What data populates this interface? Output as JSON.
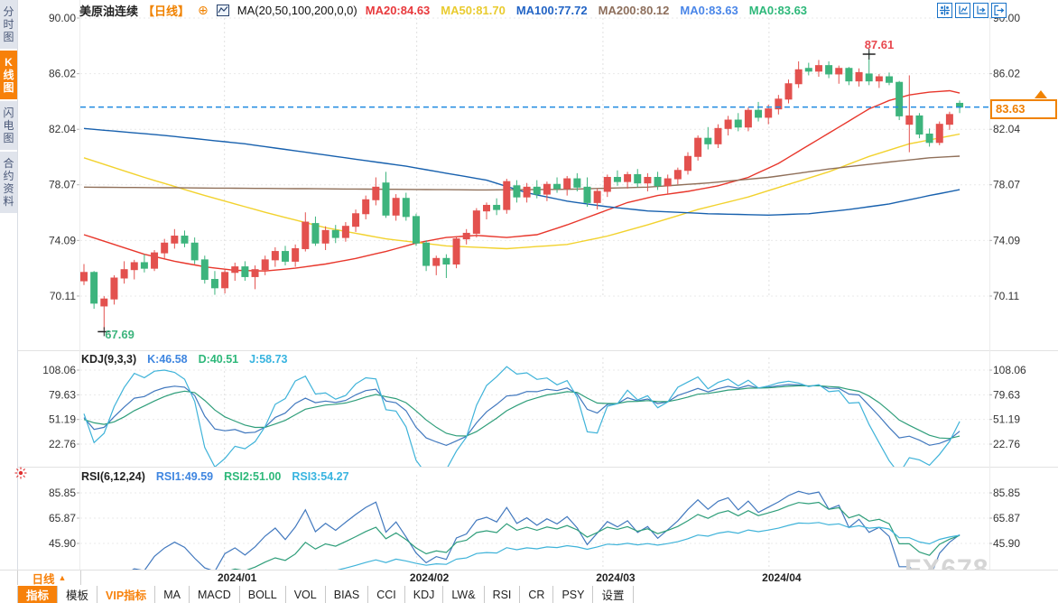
{
  "header": {
    "title": "美原油连续",
    "period_tag": "【日线】",
    "ma_formula": "MA(20,50,100,200,0,0)",
    "ma_values": [
      {
        "label": "MA20:84.63",
        "color": "#e8393c"
      },
      {
        "label": "MA50:81.70",
        "color": "#e9cb2e"
      },
      {
        "label": "MA100:77.72",
        "color": "#2264c5"
      },
      {
        "label": "MA200:80.12",
        "color": "#8d6e5b"
      },
      {
        "label": "MA0:83.63",
        "color": "#4a86e8"
      },
      {
        "label": "MA0:83.63",
        "color": "#2eb87a"
      }
    ]
  },
  "sidebar": {
    "tabs": [
      {
        "label": "分时图",
        "active": false
      },
      {
        "label": "K线图",
        "active": true
      },
      {
        "label": "闪电图",
        "active": false
      },
      {
        "label": "合约资料",
        "active": false
      }
    ]
  },
  "kdj_header": {
    "title": "KDJ(9,3,3)",
    "values": [
      {
        "label": "K:46.58",
        "color": "#3f86e0"
      },
      {
        "label": "D:40.51",
        "color": "#2eb87a"
      },
      {
        "label": "J:58.73",
        "color": "#38b4e0"
      }
    ]
  },
  "rsi_header": {
    "title": "RSI(6,12,24)",
    "values": [
      {
        "label": "RSI1:49.59",
        "color": "#3f86e0"
      },
      {
        "label": "RSI2:51.00",
        "color": "#2eb87a"
      },
      {
        "label": "RSI3:54.27",
        "color": "#38b4e0"
      }
    ]
  },
  "badge": {
    "price": "83.63"
  },
  "annotations": {
    "high": "87.61",
    "low": "67.69"
  },
  "bottom_axis": {
    "period_label": "日线"
  },
  "toolbar": {
    "items": [
      {
        "label": "指标",
        "style": "active"
      },
      {
        "label": "模板",
        "style": "normal"
      },
      {
        "label": "VIP指标",
        "style": "vip"
      },
      {
        "label": "MA",
        "style": "normal"
      },
      {
        "label": "MACD",
        "style": "normal"
      },
      {
        "label": "BOLL",
        "style": "normal"
      },
      {
        "label": "VOL",
        "style": "normal"
      },
      {
        "label": "BIAS",
        "style": "normal"
      },
      {
        "label": "CCI",
        "style": "normal"
      },
      {
        "label": "KDJ",
        "style": "normal"
      },
      {
        "label": "LW&",
        "style": "normal"
      },
      {
        "label": "RSI",
        "style": "normal"
      },
      {
        "label": "CR",
        "style": "normal"
      },
      {
        "label": "PSY",
        "style": "normal"
      },
      {
        "label": "设置",
        "style": "normal"
      }
    ]
  },
  "watermark": "FX678",
  "chart_data": {
    "type": "candlestick",
    "instrument": "美原油连续",
    "period": "日线",
    "price_axis_ticks": [
      90.0,
      86.02,
      82.04,
      78.07,
      74.09,
      70.11
    ],
    "current_price": 83.63,
    "high_annotation": {
      "index": 78,
      "price": 87.61
    },
    "low_annotation": {
      "index": 2,
      "price": 67.69
    },
    "months": [
      {
        "label": "2024/01",
        "grid_idx": 14.5
      },
      {
        "label": "2024/02",
        "grid_idx": 33.6
      },
      {
        "label": "2024/03",
        "grid_idx": 52.1
      },
      {
        "label": "2024/04",
        "grid_idx": 68.6
      }
    ],
    "candle_colors": {
      "up": "#e3514e",
      "down": "#3db47d"
    },
    "current_price_line_color": "#1f8ae0",
    "candles_ohlc": [
      [
        71.2,
        72.4,
        70.9,
        71.8
      ],
      [
        71.8,
        71.9,
        69.2,
        69.6
      ],
      [
        69.4,
        70.1,
        67.69,
        69.9
      ],
      [
        69.9,
        71.6,
        69.5,
        71.4
      ],
      [
        71.4,
        72.6,
        71.0,
        72.0
      ],
      [
        72.0,
        72.7,
        71.3,
        72.5
      ],
      [
        72.5,
        73.1,
        71.8,
        72.1
      ],
      [
        72.1,
        73.4,
        71.9,
        73.2
      ],
      [
        73.2,
        74.2,
        72.8,
        73.9
      ],
      [
        73.9,
        74.9,
        73.5,
        74.4
      ],
      [
        74.4,
        74.8,
        73.6,
        73.9
      ],
      [
        73.9,
        74.3,
        72.4,
        72.7
      ],
      [
        72.7,
        73.0,
        71.0,
        71.3
      ],
      [
        71.3,
        71.9,
        70.2,
        70.7
      ],
      [
        70.7,
        72.0,
        70.3,
        71.8
      ],
      [
        71.8,
        72.5,
        71.2,
        72.2
      ],
      [
        72.2,
        72.6,
        71.2,
        71.5
      ],
      [
        71.5,
        72.3,
        70.6,
        72.0
      ],
      [
        72.0,
        73.0,
        71.6,
        72.7
      ],
      [
        72.7,
        73.6,
        72.2,
        73.3
      ],
      [
        73.3,
        73.7,
        72.3,
        72.6
      ],
      [
        72.6,
        73.8,
        72.2,
        73.5
      ],
      [
        73.5,
        76.1,
        73.3,
        75.4
      ],
      [
        75.3,
        75.8,
        73.7,
        73.9
      ],
      [
        73.9,
        75.1,
        73.4,
        74.8
      ],
      [
        74.8,
        75.2,
        73.9,
        74.3
      ],
      [
        74.3,
        75.4,
        74.0,
        75.1
      ],
      [
        75.1,
        76.3,
        74.7,
        76.0
      ],
      [
        76.0,
        77.3,
        75.6,
        77.0
      ],
      [
        77.0,
        78.6,
        76.6,
        77.9
      ],
      [
        78.2,
        79.0,
        75.7,
        75.9
      ],
      [
        75.9,
        77.4,
        75.5,
        77.1
      ],
      [
        77.1,
        77.5,
        75.5,
        75.8
      ],
      [
        75.8,
        76.0,
        73.7,
        73.9
      ],
      [
        73.9,
        74.1,
        71.9,
        72.3
      ],
      [
        72.3,
        73.0,
        71.6,
        72.8
      ],
      [
        72.8,
        73.1,
        71.4,
        72.4
      ],
      [
        72.4,
        74.4,
        72.1,
        74.2
      ],
      [
        74.2,
        74.9,
        73.8,
        74.6
      ],
      [
        74.6,
        76.4,
        74.3,
        76.2
      ],
      [
        76.2,
        76.8,
        75.6,
        76.6
      ],
      [
        76.6,
        77.1,
        75.9,
        76.3
      ],
      [
        76.3,
        78.5,
        76.0,
        78.3
      ],
      [
        78.0,
        78.4,
        76.8,
        77.2
      ],
      [
        77.2,
        78.2,
        76.8,
        77.9
      ],
      [
        77.9,
        78.4,
        77.1,
        77.4
      ],
      [
        77.4,
        78.3,
        76.9,
        78.1
      ],
      [
        78.1,
        78.6,
        77.5,
        77.8
      ],
      [
        77.8,
        78.7,
        77.3,
        78.5
      ],
      [
        78.5,
        78.9,
        77.6,
        77.9
      ],
      [
        77.9,
        78.6,
        76.5,
        76.8
      ],
      [
        76.8,
        77.8,
        76.3,
        77.6
      ],
      [
        77.6,
        78.8,
        77.2,
        78.6
      ],
      [
        78.6,
        79.1,
        78.0,
        78.3
      ],
      [
        78.3,
        79.0,
        77.8,
        78.8
      ],
      [
        78.8,
        79.2,
        77.9,
        78.2
      ],
      [
        78.2,
        78.9,
        77.6,
        78.6
      ],
      [
        78.6,
        79.0,
        77.7,
        78.0
      ],
      [
        78.0,
        78.8,
        77.4,
        78.5
      ],
      [
        78.5,
        79.3,
        78.1,
        79.1
      ],
      [
        79.1,
        80.4,
        78.8,
        80.1
      ],
      [
        80.1,
        81.6,
        79.8,
        81.4
      ],
      [
        81.4,
        82.2,
        80.6,
        81.0
      ],
      [
        81.0,
        82.4,
        80.7,
        82.1
      ],
      [
        82.1,
        83.0,
        81.6,
        82.7
      ],
      [
        82.7,
        83.2,
        81.9,
        82.2
      ],
      [
        82.2,
        83.6,
        81.9,
        83.4
      ],
      [
        83.4,
        84.0,
        82.6,
        82.9
      ],
      [
        82.9,
        83.8,
        82.4,
        83.5
      ],
      [
        83.5,
        84.5,
        83.1,
        84.2
      ],
      [
        84.2,
        85.6,
        83.9,
        85.3
      ],
      [
        85.3,
        86.9,
        85.0,
        86.3
      ],
      [
        86.4,
        86.8,
        85.9,
        86.2
      ],
      [
        86.2,
        87.0,
        85.8,
        86.6
      ],
      [
        86.6,
        86.9,
        85.7,
        86.0
      ],
      [
        86.0,
        86.6,
        85.3,
        86.4
      ],
      [
        86.4,
        86.5,
        85.2,
        85.5
      ],
      [
        85.5,
        86.4,
        85.1,
        86.1
      ],
      [
        86.0,
        87.61,
        85.2,
        85.5
      ],
      [
        85.5,
        86.0,
        85.0,
        85.8
      ],
      [
        85.8,
        86.1,
        85.2,
        85.4
      ],
      [
        85.4,
        85.5,
        82.7,
        83.0
      ],
      [
        82.4,
        85.9,
        80.4,
        83.0
      ],
      [
        83.0,
        83.2,
        81.4,
        81.7
      ],
      [
        81.7,
        82.1,
        80.8,
        81.1
      ],
      [
        81.1,
        82.6,
        80.9,
        82.4
      ],
      [
        82.4,
        83.3,
        82.0,
        83.1
      ],
      [
        83.9,
        84.1,
        83.2,
        83.63
      ]
    ],
    "ma_lines": [
      {
        "name": "MA20",
        "color": "#e8372c",
        "anchors": [
          [
            0,
            74.5
          ],
          [
            3,
            73.8
          ],
          [
            6,
            73.1
          ],
          [
            9,
            72.6
          ],
          [
            12,
            72.2
          ],
          [
            15,
            71.95
          ],
          [
            18,
            71.9
          ],
          [
            21,
            72.1
          ],
          [
            24,
            72.4
          ],
          [
            27,
            72.8
          ],
          [
            30,
            73.3
          ],
          [
            33,
            73.9
          ],
          [
            36,
            74.3
          ],
          [
            39,
            74.45
          ],
          [
            42,
            74.3
          ],
          [
            45,
            74.5
          ],
          [
            48,
            75.2
          ],
          [
            51,
            76.0
          ],
          [
            54,
            76.8
          ],
          [
            57,
            77.3
          ],
          [
            60,
            77.6
          ],
          [
            63,
            78.0
          ],
          [
            66,
            78.6
          ],
          [
            69,
            79.6
          ],
          [
            72,
            80.9
          ],
          [
            75,
            82.2
          ],
          [
            78,
            83.5
          ],
          [
            80,
            84.1
          ],
          [
            82,
            84.5
          ],
          [
            84,
            84.7
          ],
          [
            86,
            84.8
          ],
          [
            87,
            84.63
          ]
        ]
      },
      {
        "name": "MA50",
        "color": "#f2d22e",
        "anchors": [
          [
            0,
            80.0
          ],
          [
            6,
            78.6
          ],
          [
            12,
            77.3
          ],
          [
            18,
            76.1
          ],
          [
            24,
            75.0
          ],
          [
            30,
            74.2
          ],
          [
            36,
            73.7
          ],
          [
            42,
            73.5
          ],
          [
            48,
            73.8
          ],
          [
            52,
            74.4
          ],
          [
            56,
            75.2
          ],
          [
            61,
            76.3
          ],
          [
            66,
            77.2
          ],
          [
            70,
            78.1
          ],
          [
            74,
            79.0
          ],
          [
            78,
            80.1
          ],
          [
            82,
            81.0
          ],
          [
            87,
            81.7
          ]
        ]
      },
      {
        "name": "MA100",
        "color": "#1861ae",
        "anchors": [
          [
            0,
            82.1
          ],
          [
            8,
            81.6
          ],
          [
            16,
            81.0
          ],
          [
            24,
            80.2
          ],
          [
            32,
            79.4
          ],
          [
            36,
            78.9
          ],
          [
            40,
            78.4
          ],
          [
            44,
            77.5
          ],
          [
            48,
            76.9
          ],
          [
            52,
            76.5
          ],
          [
            56,
            76.2
          ],
          [
            62,
            76.0
          ],
          [
            68,
            75.9
          ],
          [
            72,
            76.0
          ],
          [
            76,
            76.3
          ],
          [
            80,
            76.7
          ],
          [
            84,
            77.3
          ],
          [
            87,
            77.72
          ]
        ]
      },
      {
        "name": "MA200",
        "color": "#90705a",
        "anchors": [
          [
            0,
            77.9
          ],
          [
            10,
            77.85
          ],
          [
            20,
            77.8
          ],
          [
            30,
            77.75
          ],
          [
            40,
            77.7
          ],
          [
            48,
            77.75
          ],
          [
            56,
            77.9
          ],
          [
            62,
            78.2
          ],
          [
            68,
            78.6
          ],
          [
            74,
            79.2
          ],
          [
            80,
            79.7
          ],
          [
            84,
            80.0
          ],
          [
            87,
            80.12
          ]
        ]
      }
    ],
    "kdj": {
      "params": [
        9,
        3,
        3
      ],
      "axis_ticks": [
        108.06,
        79.63,
        51.19,
        22.76
      ],
      "colors": [
        "#4178be",
        "#2f9e7a",
        "#3fb3d9"
      ]
    },
    "rsi": {
      "params": [
        6,
        12,
        24
      ],
      "axis_ticks": [
        85.85,
        65.87,
        45.9
      ],
      "colors": [
        "#4178be",
        "#2f9e7a",
        "#3fb3d9"
      ]
    }
  }
}
